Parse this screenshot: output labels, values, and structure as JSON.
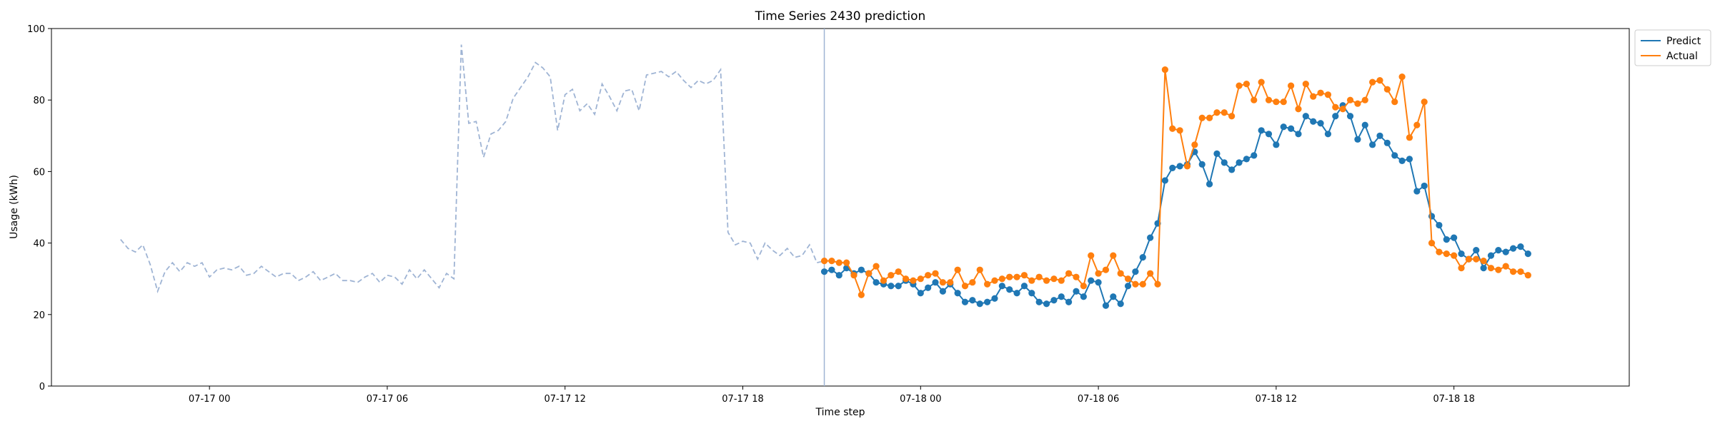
{
  "chart_data": {
    "type": "line",
    "title": "Time Series 2430 prediction",
    "xlabel": "Time step",
    "ylabel": "Usage (kWh)",
    "ylim": [
      0,
      100
    ],
    "yticks": [
      0,
      20,
      40,
      60,
      80,
      100
    ],
    "xlim": [
      "2024-07-16T18:40",
      "2024-07-18T23:55"
    ],
    "xticks": [
      {
        "t": "2024-07-17T00:00",
        "label": "07-17 00"
      },
      {
        "t": "2024-07-17T06:00",
        "label": "07-17 06"
      },
      {
        "t": "2024-07-17T12:00",
        "label": "07-17 12"
      },
      {
        "t": "2024-07-17T18:00",
        "label": "07-17 18"
      },
      {
        "t": "2024-07-18T00:00",
        "label": "07-18 00"
      },
      {
        "t": "2024-07-18T06:00",
        "label": "07-18 06"
      },
      {
        "t": "2024-07-18T12:00",
        "label": "07-18 12"
      },
      {
        "t": "2024-07-18T18:00",
        "label": "07-18 18"
      }
    ],
    "forecast_start": "2024-07-17T20:45",
    "grid": false,
    "legend_position": "top-right",
    "colors": {
      "history": "#9fb4d4",
      "predict": "#1f77b4",
      "actual": "#ff7f0e",
      "divider": "#9fb4d4"
    },
    "history": {
      "x_start": "2024-07-16T21:00",
      "x_step_minutes": 15,
      "values": [
        41,
        38.5,
        37.5,
        39.5,
        34,
        26.5,
        32,
        34.5,
        32,
        34.5,
        33.5,
        34.5,
        30.5,
        32.5,
        33,
        32.5,
        33.5,
        31,
        31.5,
        33.5,
        32,
        30.5,
        31.5,
        31.5,
        29.5,
        30.5,
        32,
        29.5,
        30.5,
        31.5,
        29.5,
        29.5,
        29,
        30.5,
        31.5,
        29,
        31,
        30.5,
        28.5,
        32.5,
        30,
        32.5,
        30,
        27.5,
        31.5,
        30,
        95.5,
        73.5,
        74,
        64,
        70.5,
        71.5,
        74,
        80.5,
        83.5,
        86.5,
        90.5,
        89,
        86.5,
        71.5,
        81.5,
        83,
        77,
        79,
        76,
        84.5,
        81,
        77,
        82.5,
        83,
        77,
        87,
        87.5,
        88,
        86.5,
        88,
        85.5,
        83.5,
        85.5,
        84.5,
        85.5,
        88.5,
        43,
        39.5,
        40.5,
        40,
        35.5,
        40,
        38,
        36.5,
        38.5,
        36,
        36.5,
        39.5,
        34.5,
        35
      ]
    },
    "series": [
      {
        "name": "Predict",
        "x_start": "2024-07-17T20:45",
        "x_step_minutes": 15,
        "values": [
          32,
          32.5,
          31,
          33,
          31.5,
          32.5,
          31.5,
          29,
          28.5,
          28,
          28,
          29.5,
          28.5,
          26,
          27.5,
          29,
          26.5,
          28.5,
          26,
          23.5,
          24,
          23,
          23.5,
          24.5,
          28,
          27,
          26,
          28,
          26,
          23.5,
          23,
          24,
          25,
          23.5,
          26.5,
          25,
          29.5,
          29,
          22.5,
          25,
          23,
          28,
          32,
          36,
          41.5,
          45.5,
          57.5,
          61,
          61.5,
          62,
          65.5,
          62,
          56.5,
          65,
          62.5,
          60.5,
          62.5,
          63.5,
          64.5,
          71.5,
          70.5,
          67.5,
          72.5,
          72,
          70.5,
          75.5,
          74,
          73.5,
          70.5,
          75.5,
          78.5,
          75.5,
          69,
          73,
          67.5,
          70,
          68,
          64.5,
          63,
          63.5,
          54.5,
          56,
          47.5,
          45,
          41,
          41.5,
          37,
          35.5,
          38,
          33,
          36.5,
          38,
          37.5,
          38.5,
          39,
          37
        ]
      },
      {
        "name": "Actual",
        "x_start": "2024-07-17T20:45",
        "x_step_minutes": 15,
        "values": [
          35,
          35,
          34.5,
          34.5,
          31,
          25.5,
          31.5,
          33.5,
          29.5,
          31,
          32,
          30,
          29.5,
          30,
          31,
          31.5,
          29,
          29,
          32.5,
          28,
          29,
          32.5,
          28.5,
          29.5,
          30,
          30.5,
          30.5,
          31,
          29.5,
          30.5,
          29.5,
          30,
          29.5,
          31.5,
          30.5,
          28,
          36.5,
          31.5,
          32.5,
          36.5,
          31.5,
          30,
          28.5,
          28.5,
          31.5,
          28.5,
          88.5,
          72,
          71.5,
          61.5,
          67.5,
          75,
          75,
          76.5,
          76.5,
          75.5,
          84,
          84.5,
          80,
          85,
          80,
          79.5,
          79.5,
          84,
          77.5,
          84.5,
          81,
          82,
          81.5,
          78,
          77.5,
          80,
          79,
          80,
          85,
          85.5,
          83,
          79.5,
          86.5,
          69.5,
          73,
          79.5,
          40,
          37.5,
          37,
          36.5,
          33,
          35.5,
          35.5,
          35,
          33,
          32.5,
          33.5,
          32,
          32,
          31
        ]
      }
    ]
  }
}
